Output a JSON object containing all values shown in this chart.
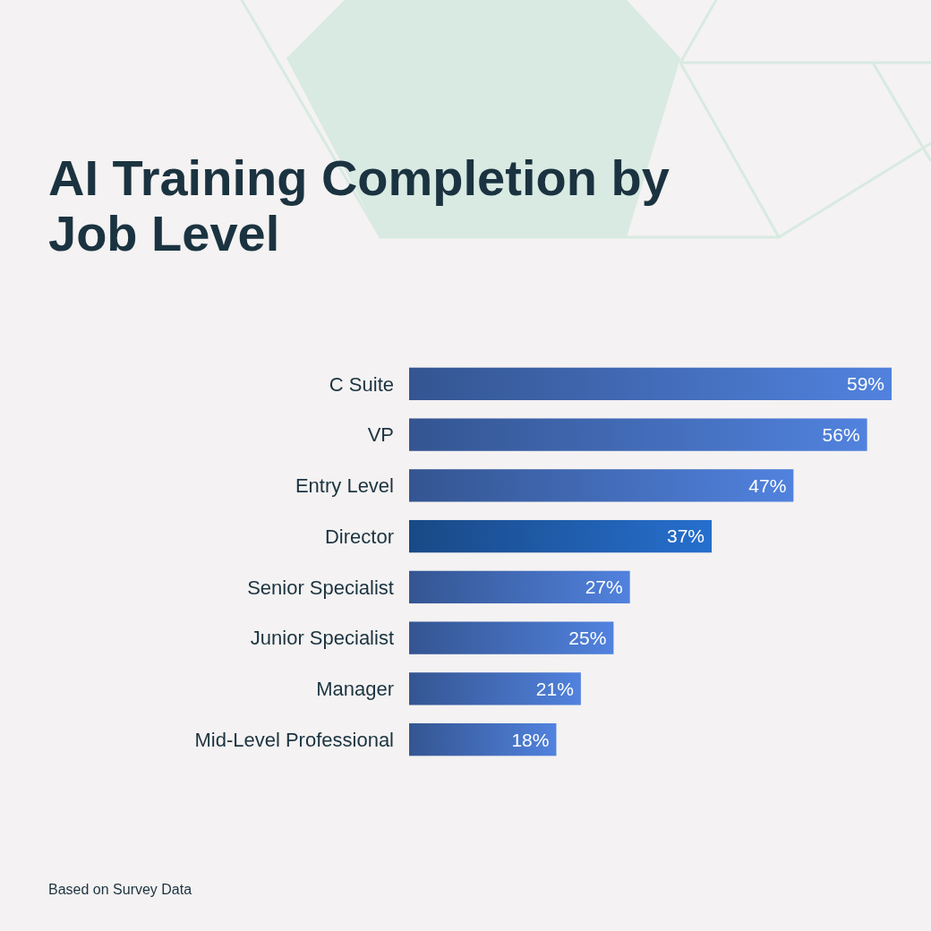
{
  "chart_data": {
    "type": "bar",
    "orientation": "horizontal",
    "title": "AI Training Completion by Job Level",
    "categories": [
      "C Suite",
      "VP",
      "Entry Level",
      "Director",
      "Senior Specialist",
      "Junior Specialist",
      "Manager",
      "Mid-Level Professional"
    ],
    "values": [
      59,
      56,
      47,
      37,
      27,
      25,
      21,
      18
    ],
    "value_labels": [
      "59%",
      "56%",
      "47%",
      "37%",
      "27%",
      "25%",
      "21%",
      "18%"
    ],
    "colors": [
      "#4169b3",
      "#4169b3",
      "#4169b3",
      "#1f5aa6",
      "#4169b3",
      "#4169b3",
      "#4169b3",
      "#4169b3"
    ],
    "annotations": [
      "Based on Survey Data"
    ]
  }
}
